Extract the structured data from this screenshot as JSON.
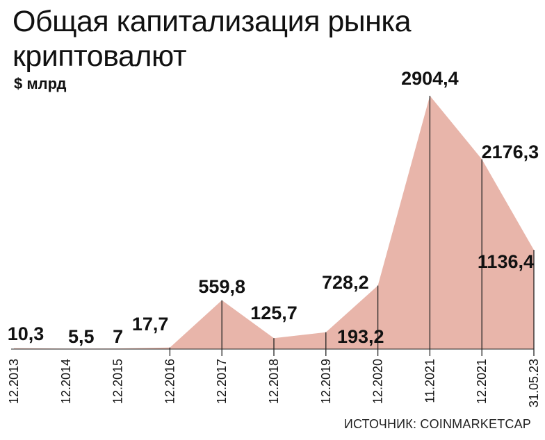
{
  "chart_data": {
    "type": "area",
    "title_line1": "Общая капитализация рынка",
    "title_line2": "криптовалют",
    "unit": "$ млрд",
    "source": "ИСТОЧНИК: COINMARKETCAP",
    "categories": [
      "12.2013",
      "12.2014",
      "12.2015",
      "12.2016",
      "12.2017",
      "12.2018",
      "12.2019",
      "12.2020",
      "11.2021",
      "12.2021",
      "31.05.23"
    ],
    "values": [
      10.3,
      5.5,
      7,
      17.7,
      559.8,
      125.7,
      193.2,
      728.2,
      2904.4,
      2176.3,
      1136.4
    ],
    "labels": [
      "10,3",
      "5,5",
      "7",
      "17,7",
      "559,8",
      "125,7",
      "193,2",
      "728,2",
      "2904,4",
      "2176,3",
      "1136,4"
    ],
    "ylim": [
      0,
      2904.4
    ],
    "fill_color": "#e8b5aa",
    "grid": false
  }
}
